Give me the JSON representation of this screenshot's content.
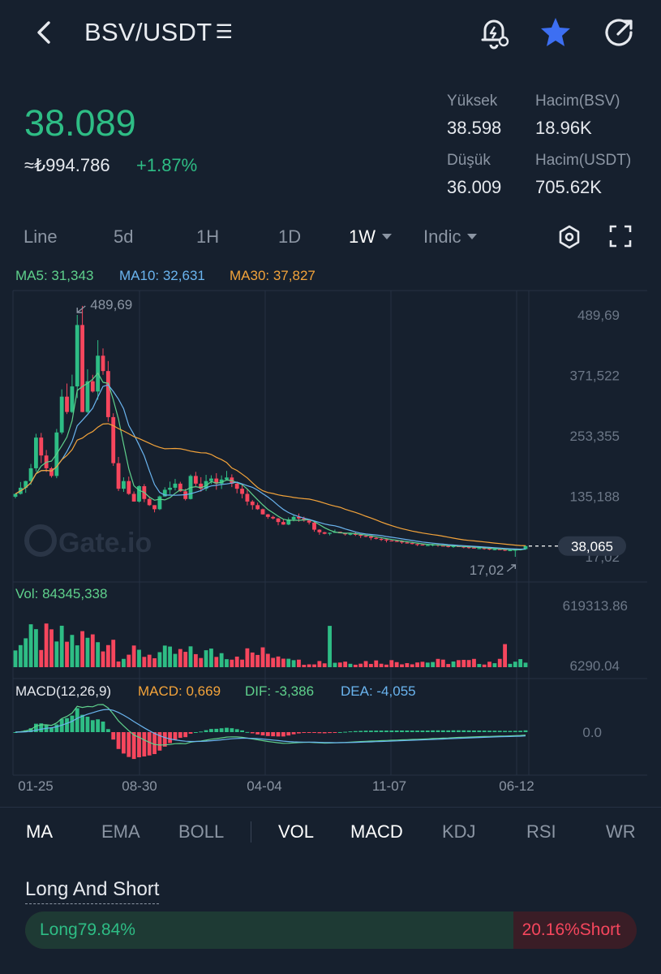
{
  "header": {
    "title": "BSV/USDT",
    "menu_glyph": "☰",
    "icons": [
      "back-arrow-icon",
      "price-alert-bell-icon",
      "star-icon",
      "share-icon"
    ]
  },
  "ticker": {
    "price": "38.089",
    "fiat": "≈₺994.786",
    "change": "+1.87%",
    "high_label": "Yüksek",
    "high_value": "38.598",
    "low_label": "Düşük",
    "low_value": "36.009",
    "vol_base_label": "Hacim(BSV)",
    "vol_base_value": "18.96K",
    "vol_quote_label": "Hacim(USDT)",
    "vol_quote_value": "705.62K"
  },
  "timeframes": {
    "items": [
      "Line",
      "5d",
      "1H",
      "1D",
      "1W",
      "Indic"
    ],
    "active": "1W"
  },
  "indicators": {
    "ma5": "MA5: 31,343",
    "ma10": "MA10: 32,631",
    "ma30": "MA30: 37,827",
    "vol": "Vol: 84345,338",
    "macd_title": "MACD(12,26,9)",
    "macd": "MACD: 0,669",
    "dif": "DIF: -3,386",
    "dea": "DEA: -4,055"
  },
  "colors": {
    "background": "#16202e",
    "up": "#2ebd85",
    "down": "#f6465d",
    "ma5": "#5fd18c",
    "ma10": "#6ab4ef",
    "ma30": "#f3a33a",
    "accent_star": "#3d6ff2"
  },
  "chart_data": {
    "type": "candlestick",
    "price_axis_ticks": [
      "489,69",
      "371,522",
      "253,355",
      "135,188",
      "17,02"
    ],
    "price_axis_range": [
      17.02,
      489.69
    ],
    "volume_axis_ticks": [
      "619313.86",
      "6290.04"
    ],
    "macd_axis_ticks": [
      "0.0"
    ],
    "x_tick_labels": [
      "01-25",
      "08-30",
      "04-04",
      "11-07",
      "06-12"
    ],
    "high_marker": "489,69",
    "low_marker": "17,02",
    "last_price_label": "38,065",
    "watermark": "Gate.io",
    "closes": [
      140,
      152,
      165,
      190,
      250,
      215,
      190,
      175,
      260,
      330,
      300,
      350,
      470,
      300,
      360,
      340,
      410,
      380,
      290,
      200,
      150,
      165,
      140,
      125,
      155,
      130,
      118,
      110,
      135,
      148,
      152,
      160,
      145,
      130,
      175,
      160,
      150,
      165,
      170,
      160,
      168,
      172,
      160,
      150,
      140,
      125,
      118,
      110,
      100,
      95,
      92,
      85,
      80,
      90,
      95,
      92,
      88,
      84,
      70,
      65,
      62,
      64,
      66,
      63,
      61,
      62,
      60,
      58,
      57,
      54,
      52,
      51,
      49,
      48,
      47,
      45,
      44,
      42,
      41,
      40,
      40,
      41,
      39,
      38,
      37,
      38,
      37,
      36,
      35,
      34,
      34,
      33,
      32,
      32,
      31,
      30,
      30,
      31,
      32,
      38
    ]
  },
  "bottom_tabs": {
    "items": [
      "MA",
      "EMA",
      "BOLL",
      "VOL",
      "MACD",
      "KDJ",
      "RSI",
      "WR"
    ],
    "active": [
      "MA",
      "VOL",
      "MACD"
    ]
  },
  "long_short": {
    "title": "Long And Short",
    "long_label": "Long79.84%",
    "short_label": "20.16%Short",
    "long_pct": 79.84
  }
}
